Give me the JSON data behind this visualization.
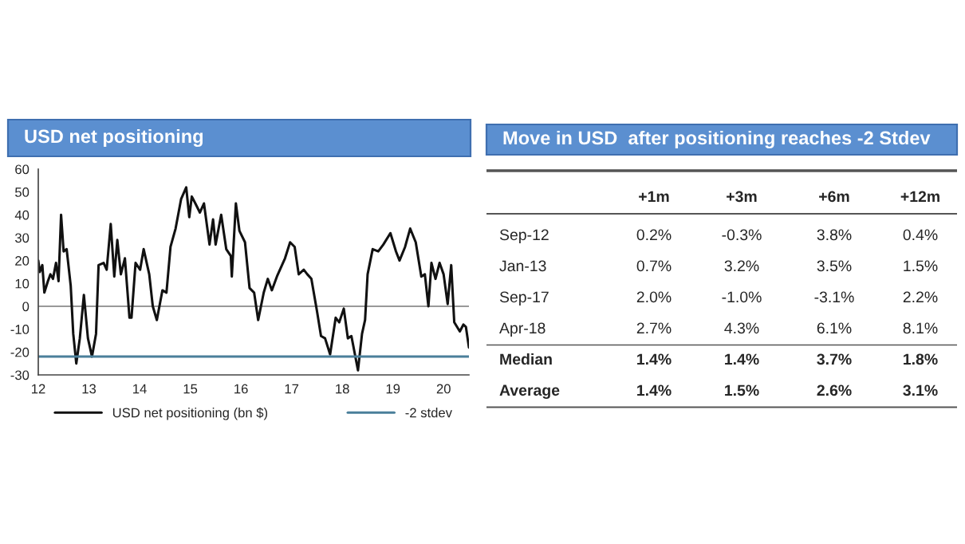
{
  "chart_data": [
    {
      "type": "line",
      "title": "USD net positioning",
      "xlim": [
        12,
        20.5
      ],
      "xticks": [
        {
          "value": 12,
          "label": "12"
        },
        {
          "value": 13,
          "label": "13"
        },
        {
          "value": 14,
          "label": "14"
        },
        {
          "value": 15,
          "label": "15"
        },
        {
          "value": 16,
          "label": "16"
        },
        {
          "value": 17,
          "label": "17"
        },
        {
          "value": 18,
          "label": "18"
        },
        {
          "value": 19,
          "label": "19"
        },
        {
          "value": 20,
          "label": "20"
        }
      ],
      "ylim": [
        -30,
        60
      ],
      "yticks": [
        -30,
        -20,
        -10,
        0,
        10,
        20,
        30,
        40,
        50,
        60
      ],
      "grid": false,
      "legend": "bottom",
      "ref_lines": [
        {
          "axis": "y",
          "value": 0,
          "color": "#999999"
        }
      ],
      "series": [
        {
          "name": "USD net positioning (bn $)",
          "color": "#111111",
          "x": [
            12.0,
            12.03,
            12.08,
            12.12,
            12.19,
            12.24,
            12.29,
            12.35,
            12.4,
            12.45,
            12.5,
            12.56,
            12.64,
            12.69,
            12.75,
            12.82,
            12.9,
            12.98,
            13.06,
            13.14,
            13.19,
            13.29,
            13.35,
            13.43,
            13.5,
            13.56,
            13.63,
            13.71,
            13.8,
            13.84,
            13.92,
            14.01,
            14.08,
            14.19,
            14.26,
            14.34,
            14.45,
            14.53,
            14.61,
            14.71,
            14.82,
            14.92,
            14.98,
            15.03,
            15.1,
            15.19,
            15.27,
            15.38,
            15.45,
            15.5,
            15.61,
            15.71,
            15.8,
            15.82,
            15.9,
            15.97,
            16.08,
            16.17,
            16.26,
            16.34,
            16.45,
            16.53,
            16.61,
            16.71,
            16.87,
            16.97,
            17.06,
            17.14,
            17.24,
            17.31,
            17.39,
            17.5,
            17.58,
            17.66,
            17.76,
            17.87,
            17.94,
            18.03,
            18.11,
            18.18,
            18.31,
            18.39,
            18.45,
            18.5,
            18.6,
            18.71,
            18.81,
            18.95,
            19.06,
            19.13,
            19.24,
            19.34,
            19.45,
            19.56,
            19.63,
            19.7,
            19.76,
            19.84,
            19.92,
            20.0,
            20.08,
            20.15,
            20.21,
            20.32,
            20.39,
            20.44,
            20.5
          ],
          "values": [
            20,
            15,
            18,
            6,
            11,
            14,
            12,
            19,
            11,
            40,
            24,
            25,
            9,
            -12,
            -25,
            -14,
            5,
            -14,
            -22,
            -12,
            18,
            19,
            16,
            36,
            13,
            29,
            14,
            21,
            -5,
            -5,
            19,
            16,
            25,
            14,
            0,
            -6,
            7,
            6,
            26,
            34,
            47,
            52,
            39,
            48,
            45,
            41,
            45,
            27,
            38,
            27,
            40,
            25,
            22,
            13,
            45,
            33,
            28,
            8,
            6,
            -6,
            6,
            12,
            7,
            13,
            21,
            28,
            26,
            14,
            16,
            14,
            12,
            -2,
            -13,
            -14,
            -21,
            -5,
            -7,
            -1,
            -14,
            -13,
            -28,
            -12,
            -6,
            14,
            25,
            24,
            27,
            32,
            24,
            20,
            26,
            34,
            28,
            13,
            14,
            0,
            19,
            12,
            19,
            14,
            1,
            18,
            -7,
            -11,
            -8,
            -9,
            -18
          ]
        },
        {
          "name": "-2 stdev",
          "color": "#4a7f9a",
          "x": [
            12,
            20.5
          ],
          "values": [
            -22,
            -22
          ]
        }
      ]
    },
    {
      "type": "other",
      "title": "Move in USD  after positioning reaches -2 Stdev",
      "categories": [
        "+1m",
        "+3m",
        "+6m",
        "+12m"
      ],
      "y_categories": [
        "Sep-12",
        "Jan-13",
        "Sep-17",
        "Apr-18",
        "Median",
        "Average"
      ],
      "cell_labels": [
        [
          "0.2%",
          "-0.3%",
          "3.8%",
          "0.4%"
        ],
        [
          "0.7%",
          "3.2%",
          "3.5%",
          "1.5%"
        ],
        [
          "2.0%",
          "-1.0%",
          "-3.1%",
          "2.2%"
        ],
        [
          "2.7%",
          "4.3%",
          "6.1%",
          "8.1%"
        ],
        [
          "1.4%",
          "1.4%",
          "3.7%",
          "1.8%"
        ],
        [
          "1.4%",
          "1.5%",
          "2.6%",
          "3.1%"
        ]
      ]
    }
  ]
}
